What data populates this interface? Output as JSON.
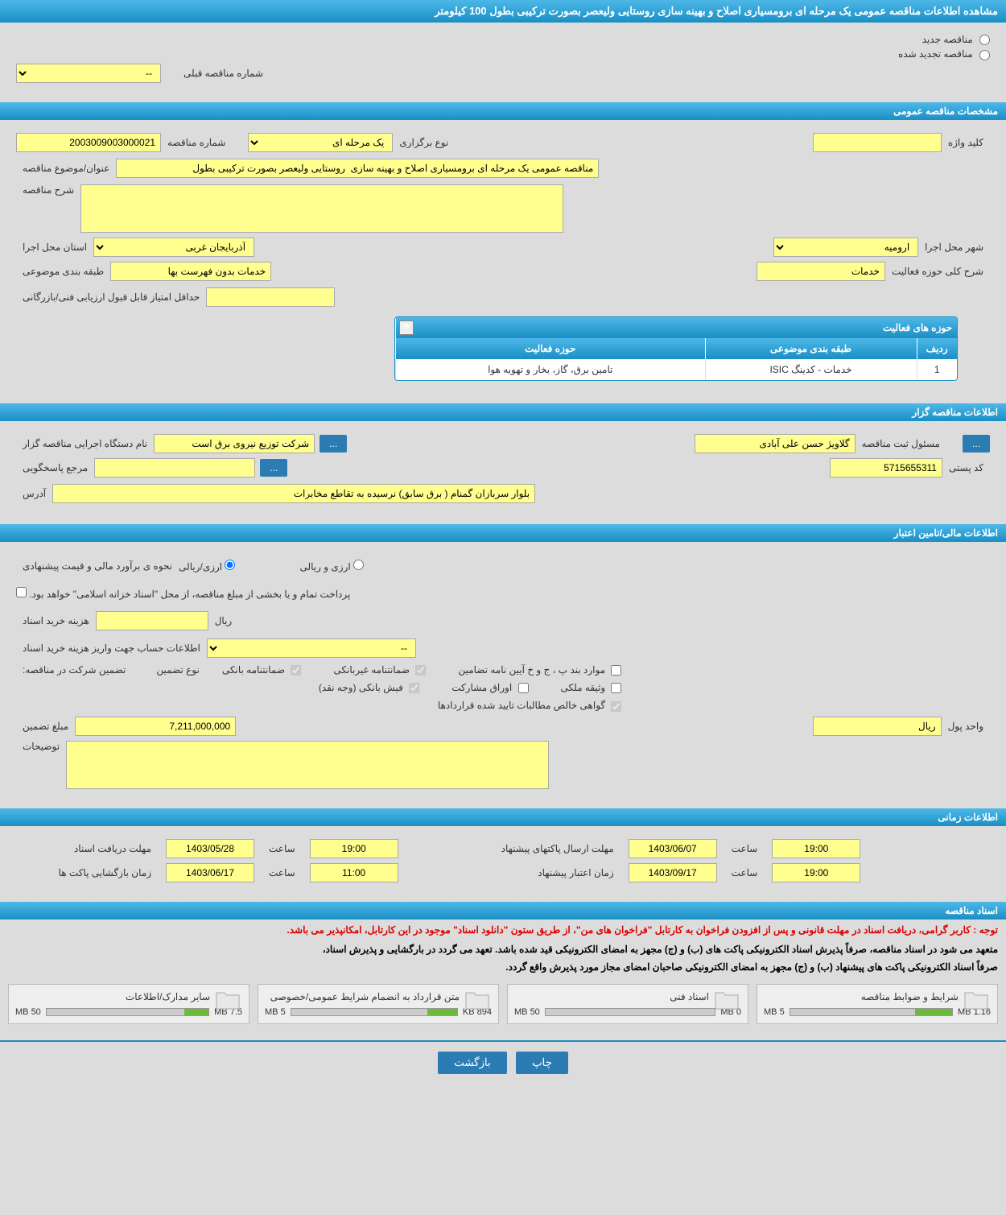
{
  "title": "مشاهده اطلاعات مناقصه عمومی یک مرحله ای برومسیاری اصلاح و بهینه سازی روستایی ولیعصر بصورت ترکیبی بطول 100 کیلومتر",
  "radios": {
    "new_tender": "مناقصه جدید",
    "renewed_tender": "مناقصه تجدید شده"
  },
  "prev_number_label": "شماره مناقصه قبلی",
  "prev_number_value": "--",
  "sections": {
    "general": "مشخصات مناقصه عمومی",
    "organizer": "اطلاعات مناقصه گزار",
    "financial": "اطلاعات مالی/تامین اعتبار",
    "timing": "اطلاعات زمانی",
    "documents": "اسناد مناقصه"
  },
  "general": {
    "tender_number_label": "شماره مناقصه",
    "tender_number": "2003009003000021",
    "holding_type_label": "نوع برگزاری",
    "holding_type": "یک مرحله ای",
    "keyword_label": "کلید واژه",
    "keyword": "",
    "subject_label": "عنوان/موضوع مناقصه",
    "subject": "مناقصه عمومی یک مرحله ای برومسیاری اصلاح و بهینه سازی  روستایی ولیعصر بصورت ترکیبی بطول",
    "description_label": "شرح مناقصه",
    "description": "",
    "province_label": "استان محل اجرا",
    "province": "آذربایجان غربی",
    "city_label": "شهر محل اجرا",
    "city": "ارومیه",
    "category_label": "طبقه بندی موضوعی",
    "category": "خدمات بدون فهرست بها",
    "activity_desc_label": "شرح کلی حوزه فعالیت",
    "activity_desc": "خدمات",
    "min_score_label": "حداقل امتیاز قابل قبول ارزیابی فنی/بازرگانی",
    "min_score": ""
  },
  "activity_table": {
    "title": "حوزه های فعالیت",
    "col_row": "ردیف",
    "col_category": "طبقه بندی موضوعی",
    "col_domain": "حوزه فعالیت",
    "row1_idx": "1",
    "row1_cat": "خدمات - کدینگ ISIC",
    "row1_domain": "تامین برق، گاز، بخار و تهویه هوا"
  },
  "organizer": {
    "agency_label": "نام دستگاه اجرایی مناقصه گزار",
    "agency": "شرکت توزیع نیروی برق است",
    "registrar_label": "مسئول ثبت مناقصه",
    "registrar": "گلاویژ حسن علی آبادی",
    "contact_label": "مرجع پاسخگویی",
    "contact": "",
    "postal_label": "کد پستی",
    "postal": "5715655311",
    "address_label": "آدرس",
    "address": "بلوار سربازان گمنام ( برق سابق) نرسیده به تقاطع مخابرات"
  },
  "financial": {
    "method_label": "نحوه ی برآورد مالی و قیمت پیشنهادی",
    "radio_rial_fx": "ارزی/ریالی",
    "radio_fx_rial": "ارزی و ریالی",
    "treasury_note": "پرداخت تمام و یا بخشی از مبلغ مناقصه، از محل \"اسناد خزانه اسلامی\" خواهد بود.",
    "doc_cost_label": "هزینه خرید اسناد",
    "doc_cost_unit": "ریال",
    "doc_cost": "",
    "account_label": "اطلاعات حساب جهت واریز هزینه خرید اسناد",
    "account": "--",
    "guarantee_label": "تضمین شرکت در مناقصه:",
    "guarantee_type_label": "نوع تضمین",
    "chk_bank_guarantee": "ضمانتنامه بانکی",
    "chk_nonbank_guarantee": "ضمانتنامه غیربانکی",
    "chk_regulation": "موارد بند پ ، ج و خ آیین نامه تضامین",
    "chk_bank_receipt": "فیش بانکی (وجه نقد)",
    "chk_participation": "اوراق مشارکت",
    "chk_property": "وثیقه ملکی",
    "chk_claims_cert": "گواهی خالص مطالبات تایید شده قراردادها",
    "guarantee_amount_label": "مبلغ تضمین",
    "guarantee_amount": "7,211,000,000",
    "currency_label": "واحد پول",
    "currency": "ریال",
    "notes_label": "توضیحات",
    "notes": ""
  },
  "timing": {
    "receive_deadline_label": "مهلت دریافت اسناد",
    "receive_date": "1403/05/28",
    "time_label": "ساعت",
    "receive_time": "19:00",
    "send_deadline_label": "مهلت ارسال پاکتهای پیشنهاد",
    "send_date": "1403/06/07",
    "send_time": "19:00",
    "opening_label": "زمان بازگشایی پاکت ها",
    "opening_date": "1403/06/17",
    "opening_time": "11:00",
    "validity_label": "زمان اعتبار پیشنهاد",
    "validity_date": "1403/09/17",
    "validity_time": "19:00"
  },
  "documents": {
    "red_note": "توجه : کاربر گرامی، دریافت اسناد در مهلت قانونی و پس از افزودن فراخوان به کارتابل \"فراخوان های من\"، از طریق ستون \"دانلود اسناد\" موجود در این کارتابل، امکانپذیر می باشد.",
    "black_note1": "متعهد می شود در اسناد مناقصه، صرفاً پذیرش اسناد الکترونیکی پاکت های (ب) و (ج) مجهز به امضای الکترونیکی قید شده باشد. تعهد می گردد در بارگشایی و پذیرش اسناد،",
    "black_note2": "صرفاً اسناد الکترونیکی پاکت های پیشنهاد (ب) و (ج) مجهز به امضای الکترونیکی صاحبان امضای مجاز مورد پذیرش واقع گردد.",
    "card1_title": "شرایط و ضوابط مناقصه",
    "card1_used": "1.16 MB",
    "card1_total": "5 MB",
    "card1_fill_pct": 23,
    "card2_title": "اسناد فنی",
    "card2_used": "0 MB",
    "card2_total": "50 MB",
    "card2_fill_pct": 0,
    "card3_title": "متن قرارداد به انضمام شرایط عمومی/خصوصی",
    "card3_used": "894 KB",
    "card3_total": "5 MB",
    "card3_fill_pct": 18,
    "card4_title": "سایر مدارک/اطلاعات",
    "card4_used": "7.5 MB",
    "card4_total": "50 MB",
    "card4_fill_pct": 15
  },
  "buttons": {
    "print": "چاپ",
    "back": "بازگشت",
    "ellipsis": "..."
  },
  "colors": {
    "header_grad_top": "#4db8e8",
    "header_grad_bottom": "#1a8fc4",
    "field_bg": "#feff8e",
    "page_bg": "#dcdcdc",
    "btn_bg": "#2b7cb3",
    "progress_fill": "#6cbb3c",
    "red_text": "#d00"
  }
}
